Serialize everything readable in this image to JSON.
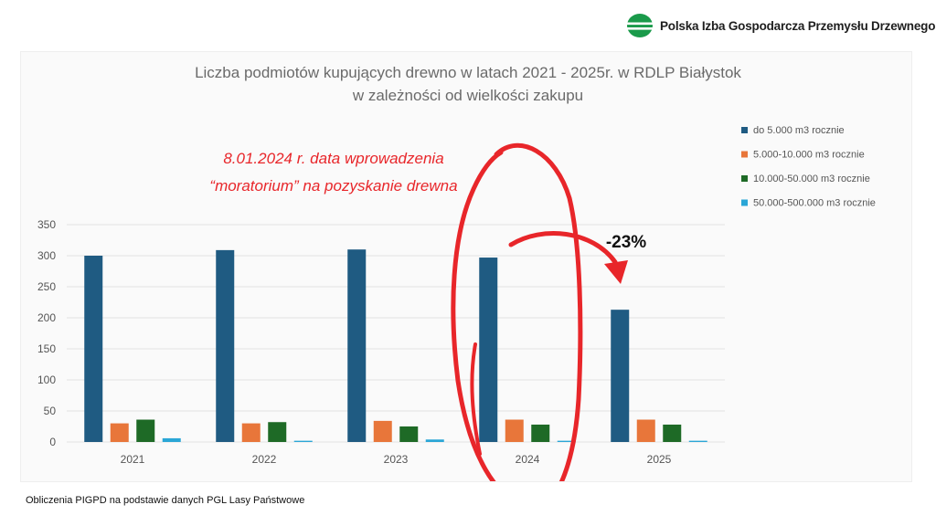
{
  "header": {
    "logo_text": "Polska Izba Gospodarcza Przemysłu Drzewnego",
    "logo_icon": "green-globe-icon"
  },
  "chart_data": {
    "type": "bar",
    "title": "Liczba podmiotów kupujących drewno w latach 2021 - 2025r. w RDLP Białystok",
    "subtitle": "w zależności od wielkości zakupu",
    "categories": [
      "2021",
      "2022",
      "2023",
      "2024",
      "2025"
    ],
    "series": [
      {
        "name": "do 5.000 m3 rocznie",
        "color": "#1f5b82",
        "values": [
          300,
          309,
          310,
          297,
          213
        ]
      },
      {
        "name": "5.000-10.000 m3 rocznie",
        "color": "#e8763a",
        "values": [
          30,
          30,
          34,
          36,
          36
        ]
      },
      {
        "name": "10.000-50.000 m3 rocznie",
        "color": "#1e6a26",
        "values": [
          36,
          32,
          25,
          28,
          28
        ]
      },
      {
        "name": "50.000-500.000 m3 rocznie",
        "color": "#2aa6d6",
        "values": [
          6,
          2,
          4,
          2,
          2
        ]
      }
    ],
    "ylim": [
      0,
      350
    ],
    "yticks": [
      0,
      50,
      100,
      150,
      200,
      250,
      300,
      350
    ],
    "grid": true,
    "legend_position": "right",
    "annotations": {
      "moratorium_line1": "8.01.2024 r. data wprowadzenia",
      "moratorium_line2": "“moratorium” na pozyskanie drewna",
      "change_label": "-23%"
    },
    "accent_color": "#e8262a"
  },
  "footer": {
    "source": "Obliczenia PIGPD na podstawie danych PGL Lasy Państwowe"
  }
}
